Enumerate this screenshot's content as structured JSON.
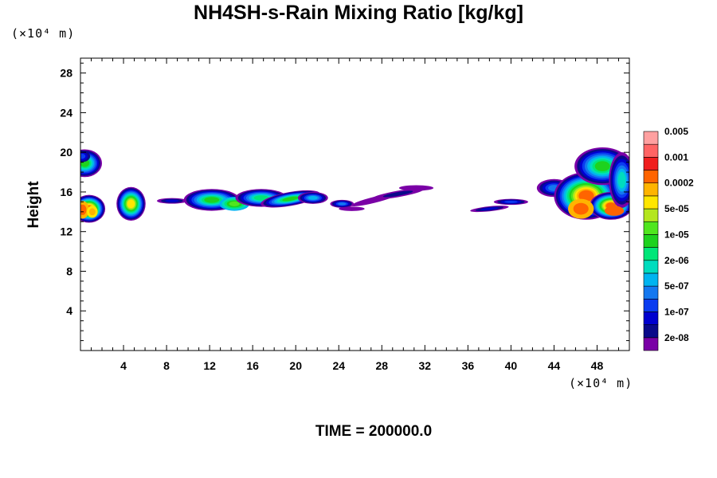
{
  "title": "NH4SH-s-Rain Mixing Ratio [kg/kg]",
  "unit_y": "(×10⁴ m)",
  "unit_x": "(×10⁴ m)",
  "time_label": "TIME =",
  "time_value": "200000.0",
  "chart_data": {
    "type": "heatmap",
    "title": "NH4SH-s-Rain Mixing Ratio [kg/kg]",
    "xlabel": "",
    "ylabel": "Height",
    "xlim": [
      0,
      51
    ],
    "ylim": [
      0,
      29.5
    ],
    "x_ticks": [
      4,
      8,
      12,
      16,
      20,
      24,
      28,
      32,
      36,
      40,
      44,
      48
    ],
    "y_ticks": [
      4,
      8,
      12,
      16,
      20,
      24,
      28
    ],
    "x_unit": "×10⁴ m",
    "y_unit": "×10⁴ m",
    "colorbar": {
      "colors": [
        "#7a00a6",
        "#0a0a8a",
        "#0000cf",
        "#0a3cf0",
        "#1478f0",
        "#00b4f0",
        "#00dcbe",
        "#00e678",
        "#1ed21e",
        "#50e61e",
        "#b4e61e",
        "#ffe600",
        "#ffb400",
        "#ff6400",
        "#f01e1e",
        "#ff6464",
        "#ffa0a0"
      ],
      "labels": [
        "2e-08",
        "1e-07",
        "5e-07",
        "2e-06",
        "1e-05",
        "5e-05",
        "0.0002",
        "0.001",
        "0.005"
      ]
    },
    "features": [
      {
        "x": [
          0,
          1.6
        ],
        "y": [
          13.2,
          15.7
        ],
        "peak": "0.001"
      },
      {
        "x": [
          0,
          1.6
        ],
        "y": [
          17.6,
          20.3
        ],
        "peak": "1e-05"
      },
      {
        "x": [
          3.4,
          6.1
        ],
        "y": [
          13.1,
          16.5
        ],
        "peak": "0.0002"
      },
      {
        "x": [
          7.2,
          23.2
        ],
        "y": [
          14.1,
          16.4
        ],
        "peak": "5e-05"
      },
      {
        "x": [
          23.0,
          33.0
        ],
        "y": [
          14.0,
          16.7
        ],
        "peak": "2e-08"
      },
      {
        "x": [
          36.5,
          51.0
        ],
        "y": [
          12.8,
          20.6
        ],
        "peak": "0.001"
      }
    ]
  }
}
